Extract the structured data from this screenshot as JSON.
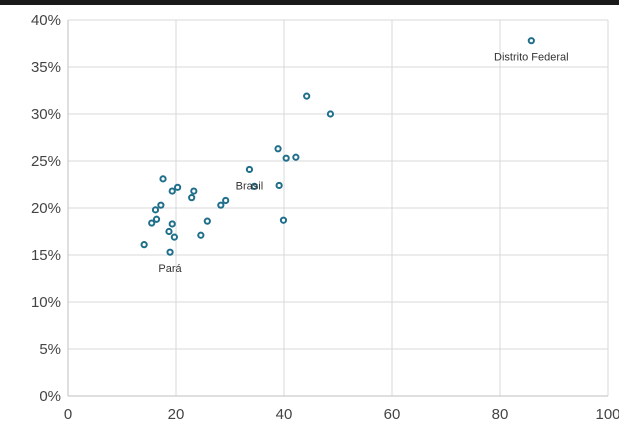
{
  "chart_data": {
    "type": "scatter",
    "title": "",
    "xlabel": "",
    "ylabel": "",
    "xlim": [
      0,
      100
    ],
    "ylim": [
      0,
      40
    ],
    "x_ticks": [
      "0",
      "20",
      "40",
      "60",
      "80",
      "100"
    ],
    "y_ticks": [
      "0%",
      "5%",
      "10%",
      "15%",
      "20%",
      "25%",
      "30%",
      "35%",
      "40%"
    ],
    "grid": true,
    "marker_color": "#1f6f8b",
    "points": [
      {
        "x": 85.8,
        "y": 37.8,
        "label": "Distrito Federal"
      },
      {
        "x": 44.2,
        "y": 31.9
      },
      {
        "x": 48.6,
        "y": 30.0
      },
      {
        "x": 38.9,
        "y": 26.3
      },
      {
        "x": 40.4,
        "y": 25.3
      },
      {
        "x": 42.2,
        "y": 25.4
      },
      {
        "x": 33.6,
        "y": 24.1,
        "label": "Brasil"
      },
      {
        "x": 34.5,
        "y": 22.3
      },
      {
        "x": 39.1,
        "y": 22.4
      },
      {
        "x": 39.9,
        "y": 18.7
      },
      {
        "x": 17.6,
        "y": 23.1
      },
      {
        "x": 19.3,
        "y": 21.8
      },
      {
        "x": 20.3,
        "y": 22.2
      },
      {
        "x": 23.3,
        "y": 21.8
      },
      {
        "x": 22.9,
        "y": 21.1
      },
      {
        "x": 29.2,
        "y": 20.8
      },
      {
        "x": 28.3,
        "y": 20.3
      },
      {
        "x": 17.2,
        "y": 20.3
      },
      {
        "x": 16.2,
        "y": 19.8
      },
      {
        "x": 25.8,
        "y": 18.6
      },
      {
        "x": 16.4,
        "y": 18.8
      },
      {
        "x": 15.5,
        "y": 18.4
      },
      {
        "x": 19.3,
        "y": 18.3
      },
      {
        "x": 18.7,
        "y": 17.5
      },
      {
        "x": 24.6,
        "y": 17.1
      },
      {
        "x": 19.7,
        "y": 16.9
      },
      {
        "x": 14.1,
        "y": 16.1
      },
      {
        "x": 18.9,
        "y": 15.3,
        "label": "Pará"
      }
    ]
  }
}
